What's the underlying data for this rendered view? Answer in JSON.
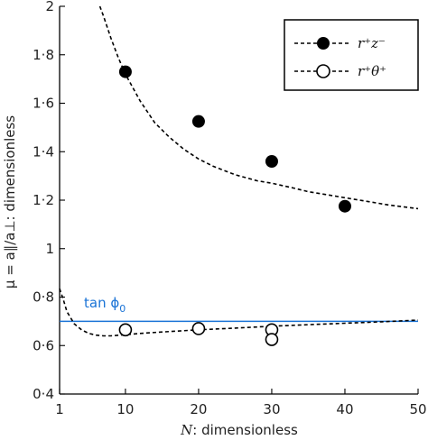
{
  "chart_data": {
    "type": "scatter",
    "xlabel_symbol": "N",
    "xlabel_text": ": dimensionless",
    "ylabel_text": "μ = a∥/a⊥: dimensionless",
    "xlim": [
      1,
      50
    ],
    "ylim": [
      0.4,
      2.0
    ],
    "x_ticks": [
      1,
      10,
      20,
      30,
      40,
      50
    ],
    "y_ticks": [
      0.4,
      0.6,
      0.8,
      1.0,
      1.2,
      1.4,
      1.6,
      1.8,
      2.0
    ],
    "x_tick_labels": [
      "1",
      "10",
      "20",
      "30",
      "40",
      "50"
    ],
    "y_tick_labels": [
      "0·4",
      "0·6",
      "0·8",
      "1",
      "1·2",
      "1·4",
      "1·6",
      "1·8",
      "2"
    ],
    "grid": false,
    "legend_position": "top-right",
    "series": [
      {
        "name": "r⁺z⁻",
        "marker": "filled-circle",
        "points": [
          [
            10,
            1.73
          ],
          [
            20,
            1.525
          ],
          [
            30,
            1.36
          ],
          [
            40,
            1.175
          ]
        ]
      },
      {
        "name": "r⁺θ⁺",
        "marker": "open-circle",
        "points": [
          [
            10,
            0.665
          ],
          [
            20,
            0.67
          ],
          [
            30,
            0.665
          ],
          [
            30,
            0.625
          ]
        ]
      }
    ],
    "curves": [
      {
        "style": "dashed",
        "color": "#000000",
        "points": [
          [
            6.5,
            2.0
          ],
          [
            7,
            1.96
          ],
          [
            8,
            1.87
          ],
          [
            9,
            1.79
          ],
          [
            10,
            1.72
          ],
          [
            12,
            1.61
          ],
          [
            14,
            1.52
          ],
          [
            16,
            1.46
          ],
          [
            18,
            1.41
          ],
          [
            20,
            1.37
          ],
          [
            22,
            1.34
          ],
          [
            25,
            1.305
          ],
          [
            28,
            1.28
          ],
          [
            30,
            1.27
          ],
          [
            33,
            1.25
          ],
          [
            35,
            1.235
          ],
          [
            38,
            1.22
          ],
          [
            40,
            1.21
          ],
          [
            43,
            1.195
          ],
          [
            46,
            1.18
          ],
          [
            50,
            1.165
          ]
        ]
      },
      {
        "style": "dashed",
        "color": "#000000",
        "points": [
          [
            1,
            0.835
          ],
          [
            1.5,
            0.79
          ],
          [
            2,
            0.74
          ],
          [
            3,
            0.69
          ],
          [
            4,
            0.665
          ],
          [
            5,
            0.65
          ],
          [
            6,
            0.643
          ],
          [
            7,
            0.64
          ],
          [
            8,
            0.64
          ],
          [
            10,
            0.645
          ],
          [
            12,
            0.65
          ],
          [
            15,
            0.656
          ],
          [
            20,
            0.665
          ],
          [
            25,
            0.672
          ],
          [
            30,
            0.68
          ],
          [
            35,
            0.686
          ],
          [
            40,
            0.692
          ],
          [
            45,
            0.698
          ],
          [
            50,
            0.705
          ]
        ]
      }
    ],
    "reference_line": {
      "label": "tan ϕ",
      "label_subscript": "0",
      "y": 0.7,
      "color": "#1a73d6"
    }
  }
}
